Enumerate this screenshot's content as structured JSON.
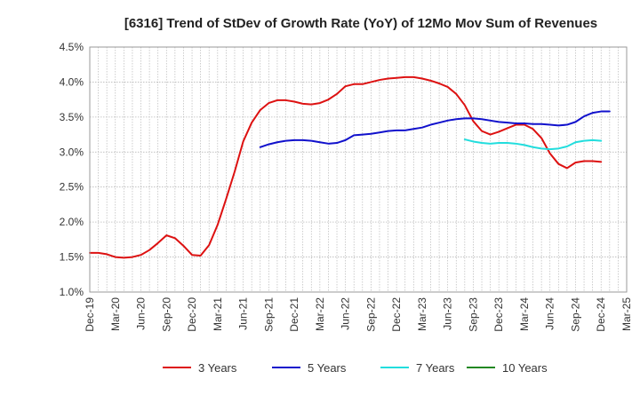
{
  "chart_data": {
    "type": "line",
    "title": "[6316]  Trend of StDev of Growth Rate (YoY) of 12Mo Mov Sum of Revenues",
    "xlabel": "",
    "ylabel": "",
    "ylim": [
      1.0,
      4.5
    ],
    "y_ticks": [
      1.0,
      1.5,
      2.0,
      2.5,
      3.0,
      3.5,
      4.0,
      4.5
    ],
    "y_tick_labels": [
      "1.0%",
      "1.5%",
      "2.0%",
      "2.5%",
      "3.0%",
      "3.5%",
      "4.0%",
      "4.5%"
    ],
    "x_tick_labels": [
      "Dec-19",
      "Mar-20",
      "Jun-20",
      "Sep-20",
      "Dec-20",
      "Mar-21",
      "Jun-21",
      "Sep-21",
      "Dec-21",
      "Mar-22",
      "Jun-22",
      "Sep-22",
      "Dec-22",
      "Mar-23",
      "Jun-23",
      "Sep-23",
      "Dec-23",
      "Mar-24",
      "Jun-24",
      "Sep-24",
      "Dec-24",
      "Mar-25"
    ],
    "x_months_total": 63,
    "grid": true,
    "legend_position": "bottom",
    "series": [
      {
        "name": "3 Years",
        "color": "#dd1111",
        "start_month": 0,
        "values": [
          1.56,
          1.56,
          1.54,
          1.5,
          1.49,
          1.5,
          1.53,
          1.6,
          1.7,
          1.81,
          1.77,
          1.66,
          1.53,
          1.52,
          1.67,
          1.96,
          2.33,
          2.72,
          3.15,
          3.42,
          3.6,
          3.7,
          3.74,
          3.74,
          3.72,
          3.69,
          3.68,
          3.7,
          3.75,
          3.83,
          3.94,
          3.97,
          3.97,
          4.0,
          4.03,
          4.05,
          4.06,
          4.07,
          4.07,
          4.05,
          4.02,
          3.98,
          3.93,
          3.83,
          3.67,
          3.44,
          3.3,
          3.25,
          3.29,
          3.34,
          3.39,
          3.39,
          3.33,
          3.2,
          2.98,
          2.83,
          2.77,
          2.85,
          2.87,
          2.87,
          2.86
        ]
      },
      {
        "name": "5 Years",
        "color": "#1111cc",
        "start_month": 20,
        "values": [
          3.07,
          3.11,
          3.14,
          3.16,
          3.17,
          3.17,
          3.16,
          3.14,
          3.12,
          3.13,
          3.17,
          3.24,
          3.25,
          3.26,
          3.28,
          3.3,
          3.31,
          3.31,
          3.33,
          3.35,
          3.39,
          3.42,
          3.45,
          3.47,
          3.48,
          3.48,
          3.47,
          3.45,
          3.43,
          3.42,
          3.41,
          3.41,
          3.4,
          3.4,
          3.39,
          3.38,
          3.39,
          3.43,
          3.51,
          3.56,
          3.58,
          3.58
        ]
      },
      {
        "name": "7 Years",
        "color": "#22dddd",
        "start_month": 44,
        "values": [
          3.18,
          3.15,
          3.13,
          3.12,
          3.13,
          3.13,
          3.12,
          3.1,
          3.07,
          3.05,
          3.04,
          3.05,
          3.08,
          3.14,
          3.16,
          3.17,
          3.16
        ]
      },
      {
        "name": "10 Years",
        "color": "#228822",
        "start_month": 0,
        "values": []
      }
    ]
  }
}
